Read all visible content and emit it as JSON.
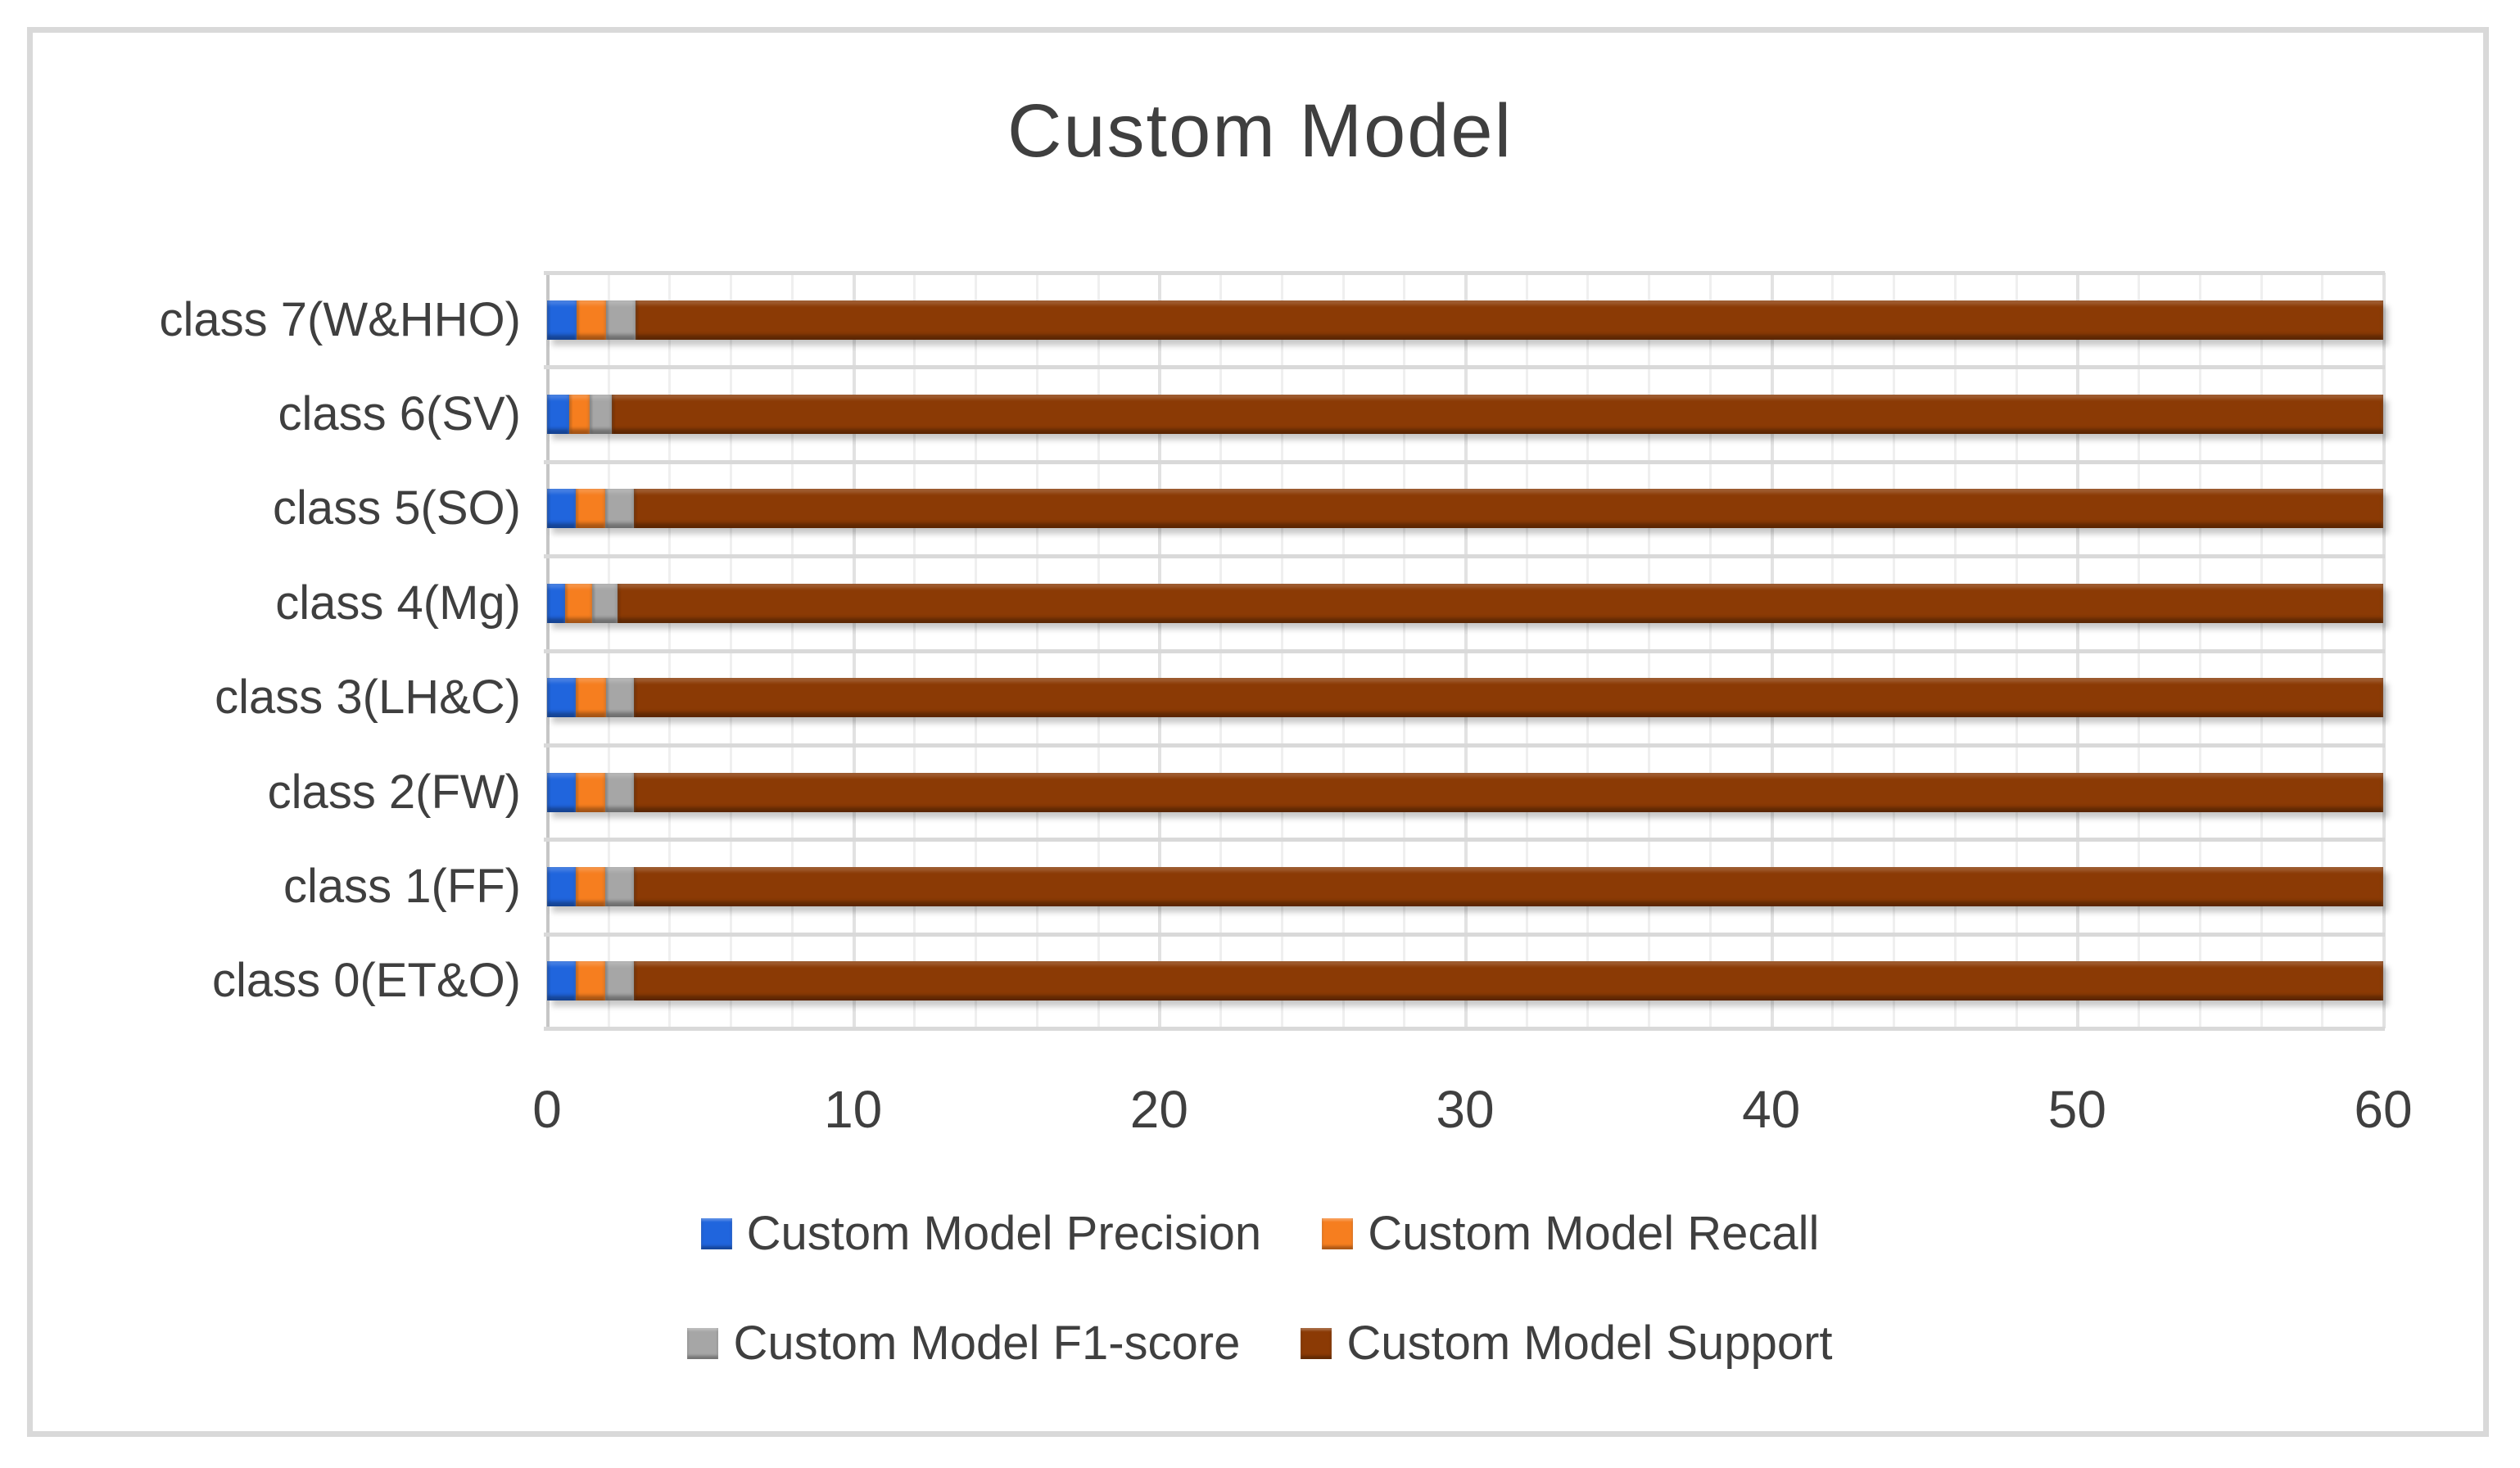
{
  "figure": {
    "background": "#ffffff",
    "frame_color": "#d9d9d9"
  },
  "chart_data": {
    "type": "bar",
    "orientation": "horizontal",
    "stacked": true,
    "title": "Custom Model",
    "categories": [
      "class 7(W&HHO)",
      "class 6(SV)",
      "class 5(SO)",
      "class 4(Mg)",
      "class 3(LH&C)",
      "class 2(FW)",
      "class 1(FF)",
      "class 0(ET&O)"
    ],
    "series": [
      {
        "name": "Custom Model Precision",
        "color": "#2065dd",
        "values": [
          0.96,
          0.73,
          0.95,
          0.59,
          0.94,
          0.95,
          0.95,
          0.95
        ]
      },
      {
        "name": "Custom Model Recall",
        "color": "#f67e1f",
        "values": [
          0.98,
          0.67,
          0.95,
          0.87,
          1.0,
          0.94,
          0.94,
          0.94
        ]
      },
      {
        "name": "Custom Model F1-score",
        "color": "#a6a6a6",
        "values": [
          0.94,
          0.71,
          0.95,
          0.84,
          0.9,
          0.94,
          0.94,
          0.94
        ]
      },
      {
        "name": "Custom Model Support",
        "color": "#8b3a05",
        "values": [
          60,
          60,
          60,
          60,
          60,
          60,
          60,
          60
        ]
      }
    ],
    "x_axis": {
      "min": 0,
      "max": 60,
      "tick_step": 10,
      "tick_labels": [
        "0",
        "10",
        "20",
        "30",
        "40",
        "50",
        "60"
      ],
      "minor_grid_step": 2,
      "bars_clipped_at_max": true
    },
    "grid": true,
    "legend_position": "bottom",
    "legend_rows": [
      [
        0,
        1
      ],
      [
        2,
        3
      ]
    ]
  }
}
